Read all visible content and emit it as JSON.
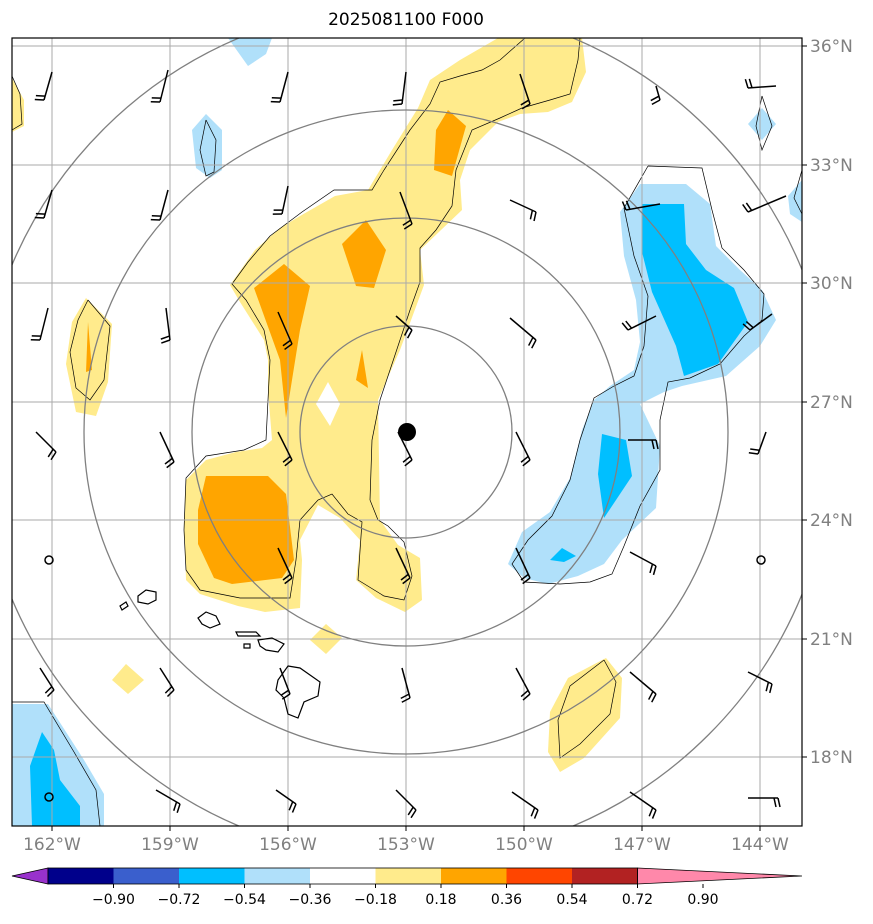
{
  "title": "2025081100 F000",
  "lat_labels": [
    "36°N",
    "33°N",
    "30°N",
    "27°N",
    "24°N",
    "21°N",
    "18°N"
  ],
  "lon_labels": [
    "162°W",
    "159°W",
    "156°W",
    "153°W",
    "150°W",
    "147°W",
    "144°W"
  ],
  "colorbar": {
    "ticks": [
      "−0.90",
      "−0.72",
      "−0.54",
      "−0.36",
      "−0.18",
      "0.18",
      "0.36",
      "0.54",
      "0.72",
      "0.90"
    ],
    "colors": [
      "#9932cc",
      "#00008b",
      "#3a5fcd",
      "#00bfff",
      "#b0e0fa",
      "#ffffff",
      "#ffeb8c",
      "#ffa500",
      "#ff4500",
      "#b22222",
      "#ff88aa"
    ]
  },
  "colors": {
    "frame": "#000000",
    "grid": "#aaaaaa",
    "range_rings": "#808080",
    "pos_light": "#ffeb8c",
    "pos_mid": "#ffa500",
    "neg_light": "#b0e0fa",
    "neg_mid": "#00bfff",
    "center_marker": "#000000"
  },
  "map": {
    "center": {
      "lat": 26.3,
      "lon": -153.0
    },
    "lon_range": [
      -163.0,
      -143.0
    ],
    "lat_range": [
      16.2,
      36.2
    ]
  }
}
